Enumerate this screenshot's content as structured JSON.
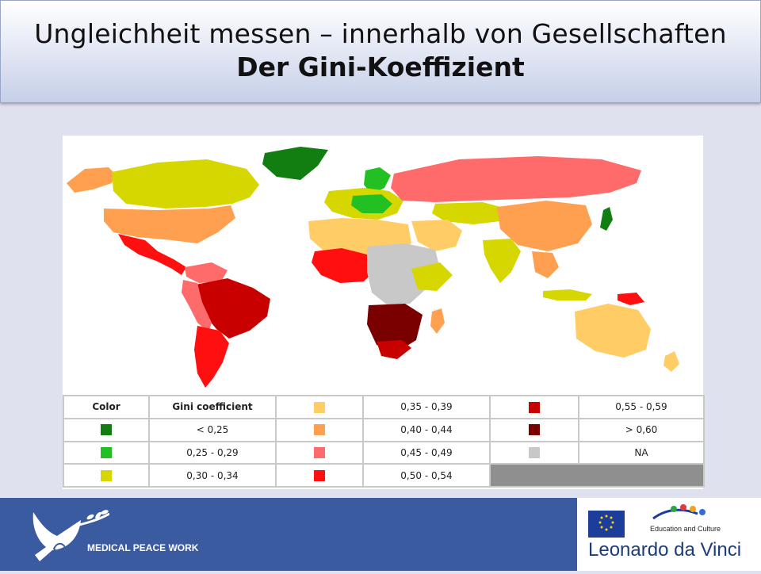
{
  "title": {
    "line1": "Ungleichheit messen – innerhalb von Gesellschaften",
    "line2": "Der Gini-Koeffizient"
  },
  "legend": {
    "header_color": "Color",
    "header_gini": "Gini coefficient",
    "items": [
      {
        "label": "< 0,25",
        "color": "#127e12"
      },
      {
        "label": "0,25 - 0,29",
        "color": "#22c022"
      },
      {
        "label": "0,30 - 0,34",
        "color": "#d6d600"
      },
      {
        "label": "0,35 - 0,39",
        "color": "#ffcc66"
      },
      {
        "label": "0,40 - 0,44",
        "color": "#ffa050"
      },
      {
        "label": "0,45 - 0,49",
        "color": "#ff6b6b"
      },
      {
        "label": "0,50 - 0,54",
        "color": "#ff0f0f"
      },
      {
        "label": "0,55 - 0,59",
        "color": "#c80000"
      },
      {
        "label": "> 0,60",
        "color": "#7a0000"
      },
      {
        "label": "NA",
        "color": "#c8c8c8"
      }
    ]
  },
  "footer": {
    "org_name": "MEDICAL PEACE WORK",
    "edu_label": "Education and Culture",
    "program_name": "Leonardo da Vinci"
  }
}
